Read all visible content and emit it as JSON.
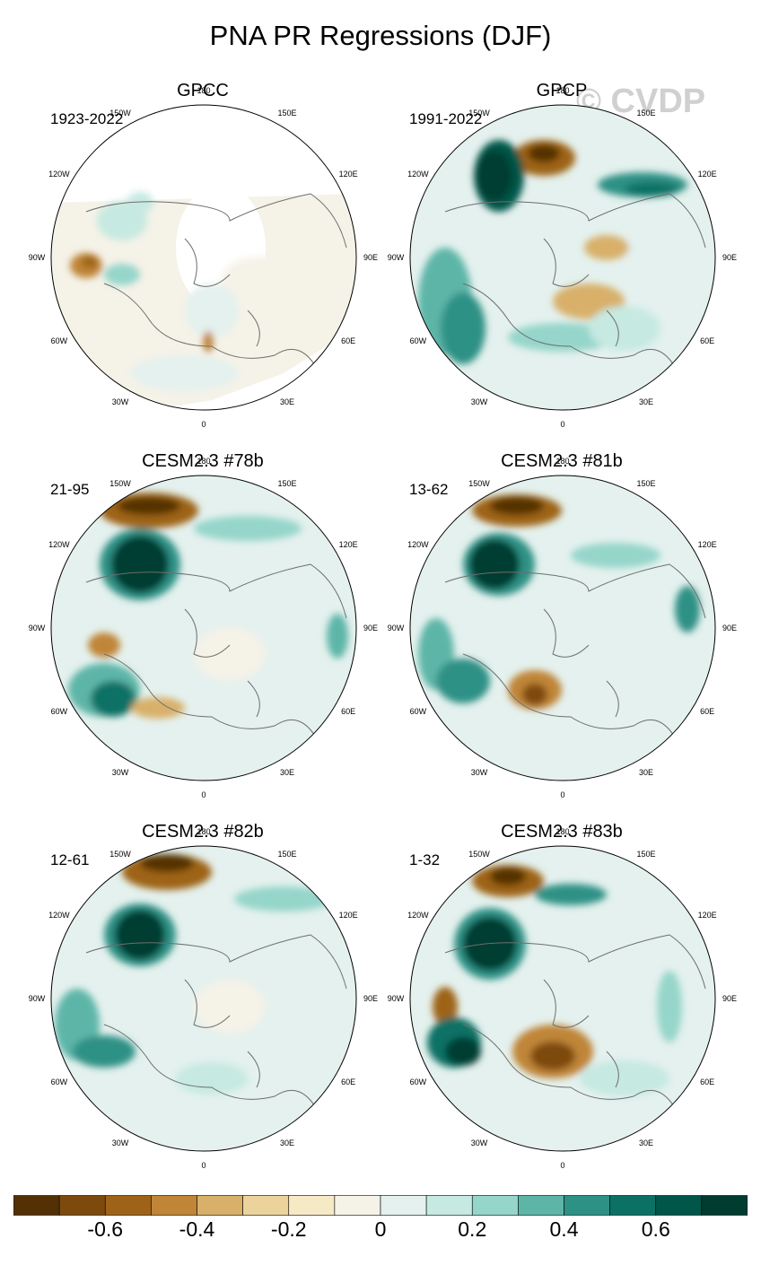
{
  "title": "PNA PR Regressions (DJF)",
  "watermark": "© CVDP",
  "panels": [
    {
      "title": "GPCC",
      "period": "1923-2022"
    },
    {
      "title": "GPCP",
      "period": "1991-2022"
    },
    {
      "title": "CESM2.3 #78b",
      "period": "21-95"
    },
    {
      "title": "CESM2.3 #81b",
      "period": "13-62"
    },
    {
      "title": "CESM2.3 #82b",
      "period": "12-61"
    },
    {
      "title": "CESM2.3 #83b",
      "period": "1-32"
    }
  ],
  "lon_labels": [
    "180",
    "150E",
    "120E",
    "90E",
    "60E",
    "30E",
    "0",
    "30W",
    "60W",
    "90W",
    "120W",
    "150W"
  ],
  "colorbar": {
    "colors": [
      "#543005",
      "#7d4a0d",
      "#9e6318",
      "#c08537",
      "#d8b06a",
      "#ecd39c",
      "#f6e9c6",
      "#f5f2e8",
      "#e4f1ee",
      "#c6e9e1",
      "#95d5ca",
      "#5db5a8",
      "#2d9185",
      "#0c7165",
      "#01564a",
      "#003c30"
    ],
    "tick_labels": [
      "-0.6",
      "-0.4",
      "-0.2",
      "0",
      "0.2",
      "0.4",
      "0.6"
    ],
    "tick_values": [
      -0.6,
      -0.4,
      -0.2,
      0,
      0.2,
      0.4,
      0.6
    ]
  }
}
